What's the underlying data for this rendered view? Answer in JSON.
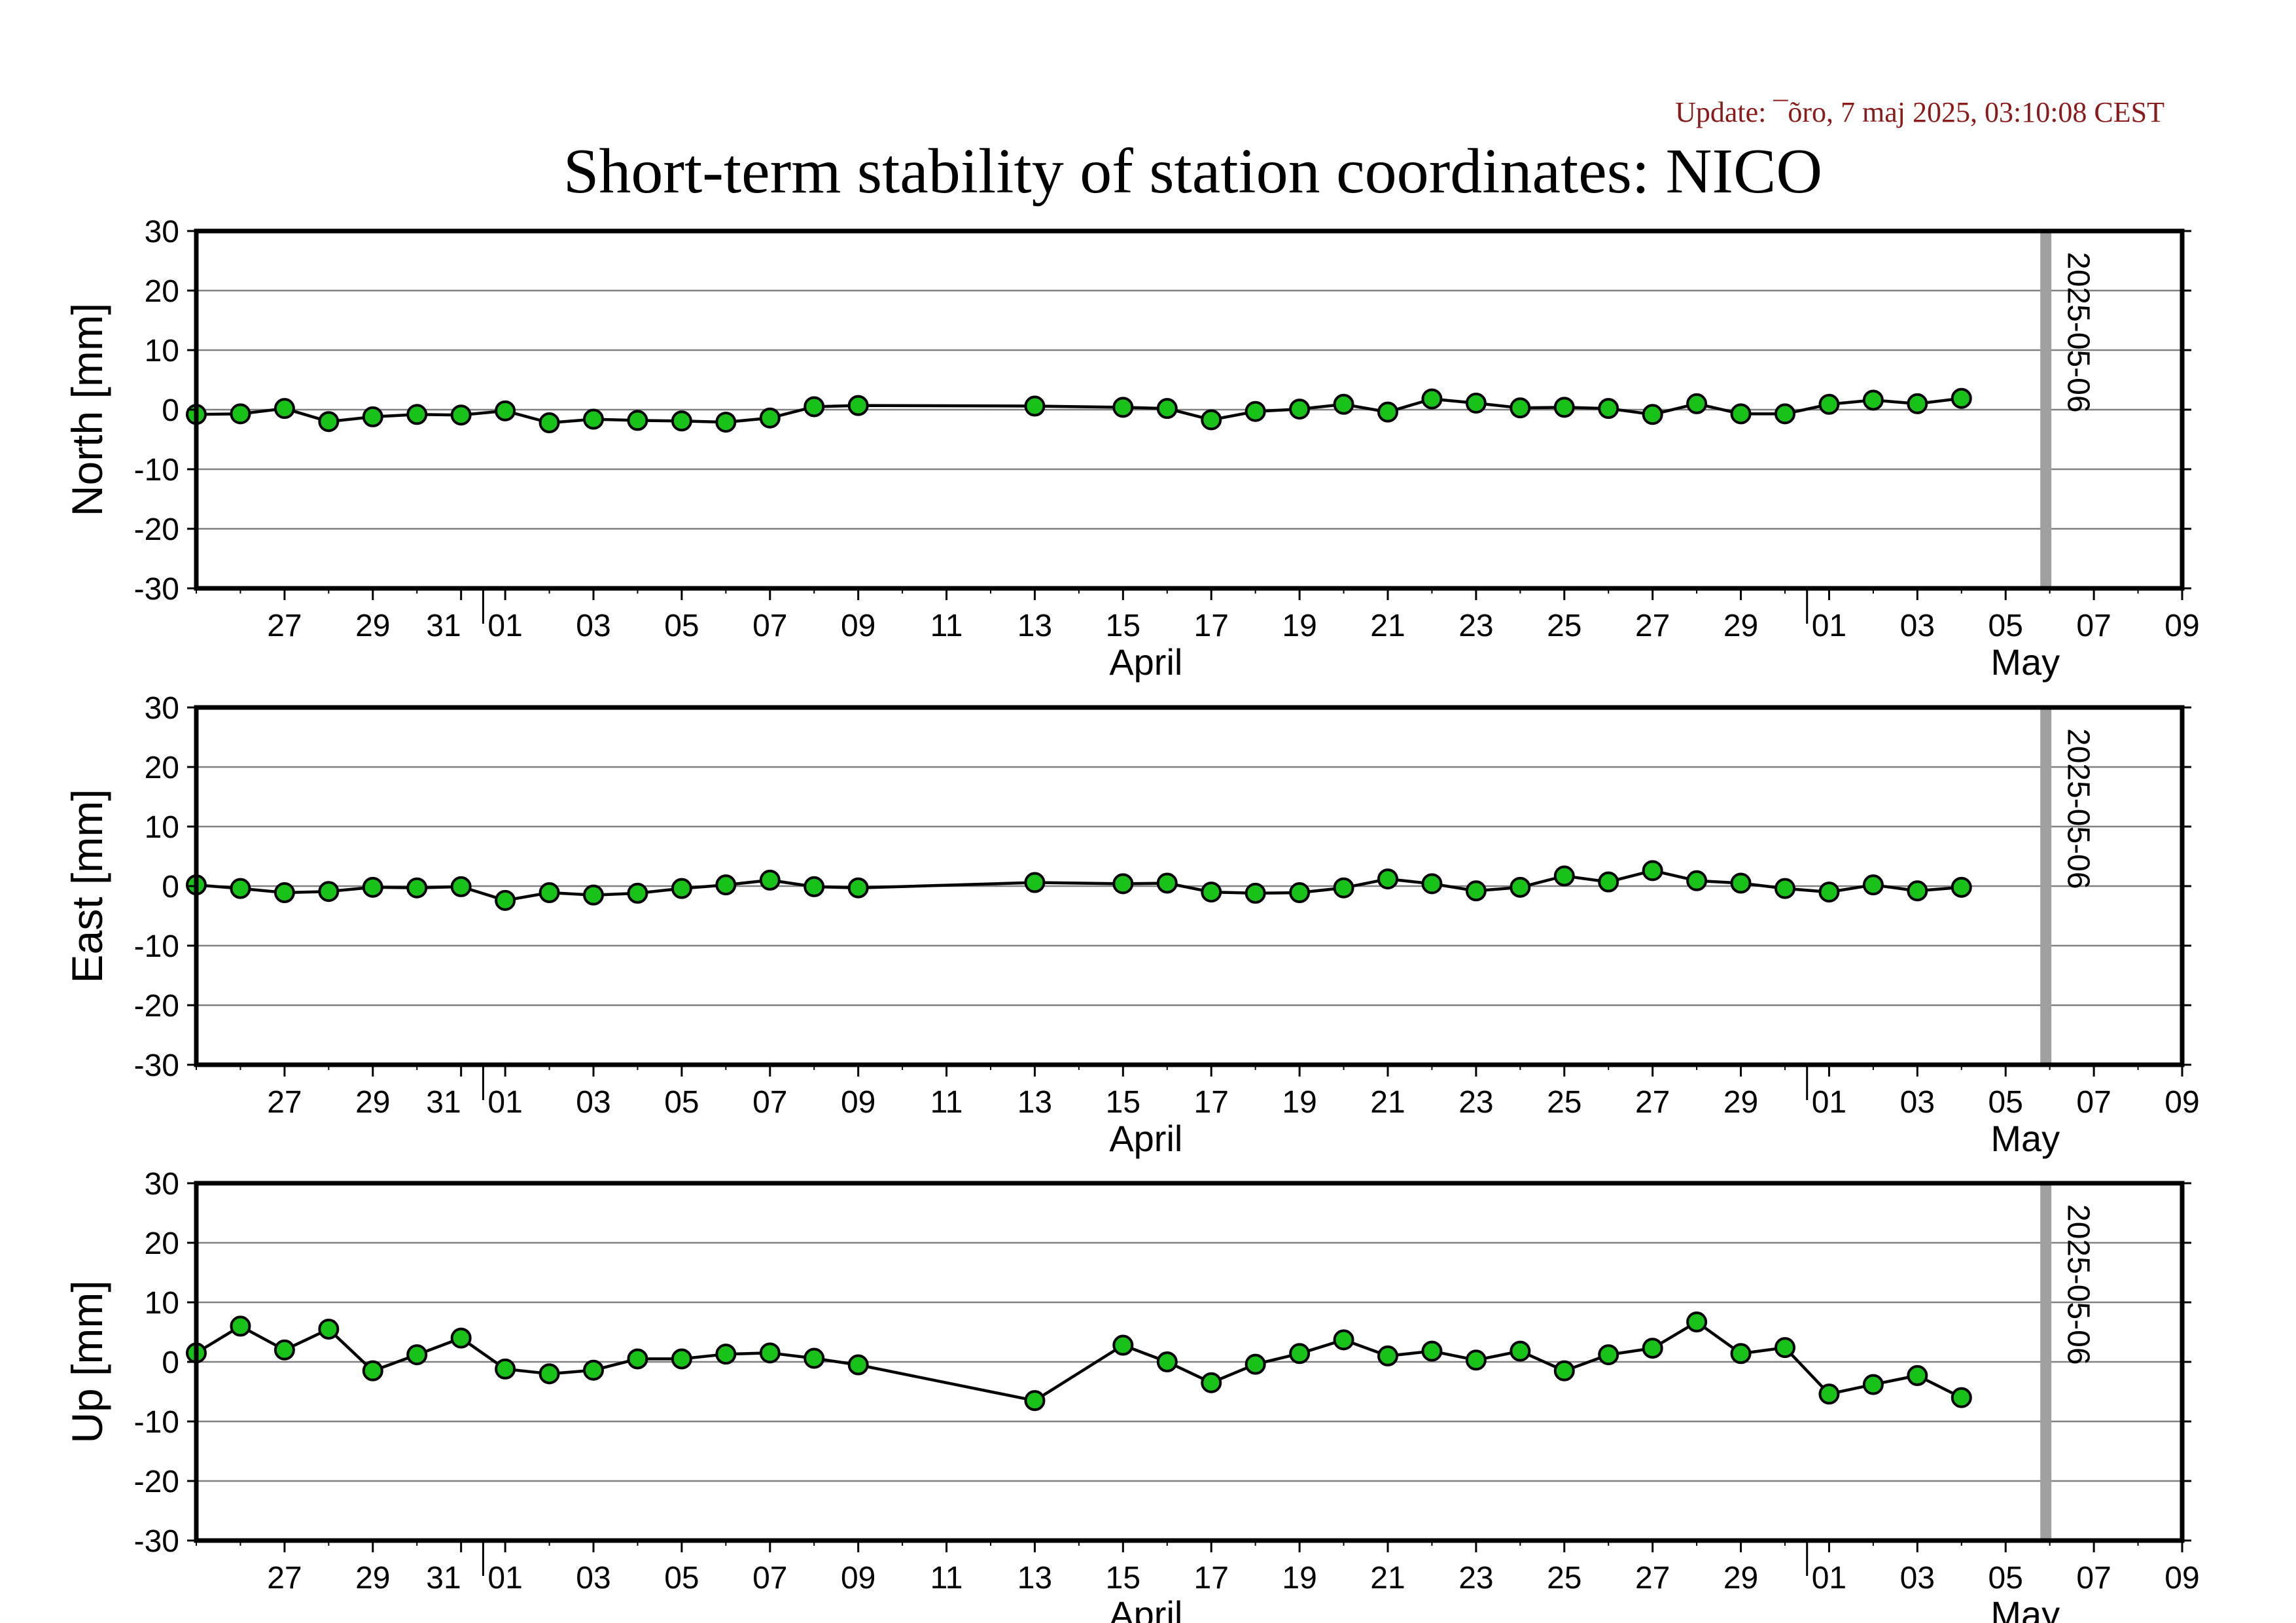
{
  "update_text": "Update: ¯õro, 7 maj 2025, 03:10:08 CEST",
  "title": "Short-term stability of station coordinates: NICO",
  "x_tick_labels": [
    "27",
    "29",
    "31",
    "01",
    "03",
    "05",
    "07",
    "09",
    "11",
    "13",
    "15",
    "17",
    "19",
    "21",
    "23",
    "25",
    "27",
    "29",
    "01",
    "03",
    "05",
    "07",
    "09"
  ],
  "month_labels": [
    "April",
    "May"
  ],
  "marker_date": "2025-05-06",
  "colors": {
    "point_fill": "#19c219",
    "line": "#000000",
    "grid": "#808080",
    "marker": "#a0a0a0",
    "update": "#8b1a1a"
  },
  "chart_data": [
    {
      "type": "line",
      "ylabel": "North [mm]",
      "ylim": [
        -30,
        30
      ],
      "yticks": [
        30,
        20,
        10,
        0,
        -10,
        -20,
        -30
      ],
      "xlim": [
        "2025-03-25",
        "2025-05-09"
      ],
      "grid": true,
      "x": [
        "2025-03-25",
        "2025-03-26",
        "2025-03-27",
        "2025-03-28",
        "2025-03-29",
        "2025-03-30",
        "2025-03-31",
        "2025-04-01",
        "2025-04-02",
        "2025-04-03",
        "2025-04-04",
        "2025-04-05",
        "2025-04-06",
        "2025-04-07",
        "2025-04-08",
        "2025-04-09",
        "2025-04-13",
        "2025-04-15",
        "2025-04-16",
        "2025-04-17",
        "2025-04-18",
        "2025-04-19",
        "2025-04-20",
        "2025-04-21",
        "2025-04-22",
        "2025-04-23",
        "2025-04-24",
        "2025-04-25",
        "2025-04-26",
        "2025-04-27",
        "2025-04-28",
        "2025-04-29",
        "2025-04-30",
        "2025-05-01",
        "2025-05-02",
        "2025-05-03",
        "2025-05-04"
      ],
      "values": [
        -0.8,
        -0.7,
        0.2,
        -2.0,
        -1.2,
        -0.8,
        -0.9,
        -0.2,
        -2.2,
        -1.6,
        -1.8,
        -1.9,
        -2.1,
        -1.4,
        0.5,
        0.7,
        0.6,
        0.4,
        0.2,
        -1.7,
        -0.3,
        0.1,
        0.9,
        -0.4,
        1.8,
        1.1,
        0.3,
        0.4,
        0.2,
        -0.8,
        1.0,
        -0.7,
        -0.7,
        0.9,
        1.6,
        1.0,
        1.9
      ]
    },
    {
      "type": "line",
      "ylabel": "East [mm]",
      "ylim": [
        -30,
        30
      ],
      "yticks": [
        30,
        20,
        10,
        0,
        -10,
        -20,
        -30
      ],
      "xlim": [
        "2025-03-25",
        "2025-05-09"
      ],
      "grid": true,
      "x": [
        "2025-03-25",
        "2025-03-26",
        "2025-03-27",
        "2025-03-28",
        "2025-03-29",
        "2025-03-30",
        "2025-03-31",
        "2025-04-01",
        "2025-04-02",
        "2025-04-03",
        "2025-04-04",
        "2025-04-05",
        "2025-04-06",
        "2025-04-07",
        "2025-04-08",
        "2025-04-09",
        "2025-04-13",
        "2025-04-15",
        "2025-04-16",
        "2025-04-17",
        "2025-04-18",
        "2025-04-19",
        "2025-04-20",
        "2025-04-21",
        "2025-04-22",
        "2025-04-23",
        "2025-04-24",
        "2025-04-25",
        "2025-04-26",
        "2025-04-27",
        "2025-04-28",
        "2025-04-29",
        "2025-04-30",
        "2025-05-01",
        "2025-05-02",
        "2025-05-03",
        "2025-05-04"
      ],
      "values": [
        0.2,
        -0.4,
        -1.1,
        -0.9,
        -0.2,
        -0.3,
        -0.1,
        -2.4,
        -1.1,
        -1.5,
        -1.2,
        -0.4,
        0.2,
        1.0,
        -0.1,
        -0.3,
        0.6,
        0.4,
        0.5,
        -1.0,
        -1.2,
        -1.1,
        -0.3,
        1.2,
        0.4,
        -0.8,
        -0.2,
        1.7,
        0.7,
        2.6,
        0.9,
        0.5,
        -0.4,
        -1.0,
        0.2,
        -0.8,
        -0.2
      ]
    },
    {
      "type": "line",
      "ylabel": "Up [mm]",
      "ylim": [
        -30,
        30
      ],
      "yticks": [
        30,
        20,
        10,
        0,
        -10,
        -20,
        -30
      ],
      "xlim": [
        "2025-03-25",
        "2025-05-09"
      ],
      "grid": true,
      "x": [
        "2025-03-25",
        "2025-03-26",
        "2025-03-27",
        "2025-03-28",
        "2025-03-29",
        "2025-03-30",
        "2025-03-31",
        "2025-04-01",
        "2025-04-02",
        "2025-04-03",
        "2025-04-04",
        "2025-04-05",
        "2025-04-06",
        "2025-04-07",
        "2025-04-08",
        "2025-04-09",
        "2025-04-13",
        "2025-04-15",
        "2025-04-16",
        "2025-04-17",
        "2025-04-18",
        "2025-04-19",
        "2025-04-20",
        "2025-04-21",
        "2025-04-22",
        "2025-04-23",
        "2025-04-24",
        "2025-04-25",
        "2025-04-26",
        "2025-04-27",
        "2025-04-28",
        "2025-04-29",
        "2025-04-30",
        "2025-05-01",
        "2025-05-02",
        "2025-05-03",
        "2025-05-04"
      ],
      "values": [
        1.5,
        6.0,
        2.0,
        5.5,
        -1.5,
        1.2,
        4.0,
        -1.2,
        -2.0,
        -1.4,
        0.5,
        0.5,
        1.3,
        1.5,
        0.6,
        -0.5,
        -6.5,
        2.8,
        0.0,
        -3.5,
        -0.4,
        1.4,
        3.7,
        1.0,
        1.8,
        0.3,
        1.8,
        -1.5,
        1.2,
        2.3,
        6.7,
        1.4,
        2.4,
        -5.4,
        -3.8,
        -2.3,
        -6.0
      ]
    }
  ]
}
